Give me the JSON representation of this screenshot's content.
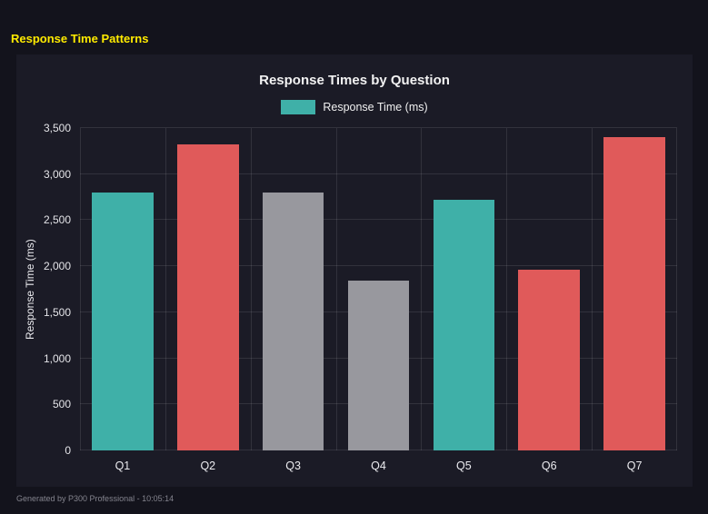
{
  "page": {
    "title": "Response Time Patterns",
    "footer": "Generated by P300 Professional - 10:05:14"
  },
  "chart_data": {
    "type": "bar",
    "title": "Response Times by Question",
    "legend": {
      "label": "Response Time (ms)",
      "color": "#3fb0a8",
      "position": "top"
    },
    "categories": [
      "Q1",
      "Q2",
      "Q3",
      "Q4",
      "Q5",
      "Q6",
      "Q7"
    ],
    "values": [
      2800,
      3320,
      2800,
      1840,
      2720,
      1960,
      3400
    ],
    "bar_colors": [
      "#3fb0a8",
      "#e05a5a",
      "#98989e",
      "#98989e",
      "#3fb0a8",
      "#e05a5a",
      "#e05a5a"
    ],
    "xlabel": "",
    "ylabel": "Response Time (ms)",
    "ylim": [
      0,
      3500
    ],
    "yticks": [
      {
        "value": 0,
        "label": "0"
      },
      {
        "value": 500,
        "label": "500"
      },
      {
        "value": 1000,
        "label": "1,000"
      },
      {
        "value": 1500,
        "label": "1,500"
      },
      {
        "value": 2000,
        "label": "2,000"
      },
      {
        "value": 2500,
        "label": "2,500"
      },
      {
        "value": 3000,
        "label": "3,000"
      },
      {
        "value": 3500,
        "label": "3,500"
      }
    ],
    "grid": true
  },
  "colors": {
    "page_background": "#13131c",
    "panel_background": "#1b1b26",
    "title_yellow": "#ffeb00",
    "text": "#ececf0",
    "grid": "rgba(255,255,255,0.10)"
  }
}
